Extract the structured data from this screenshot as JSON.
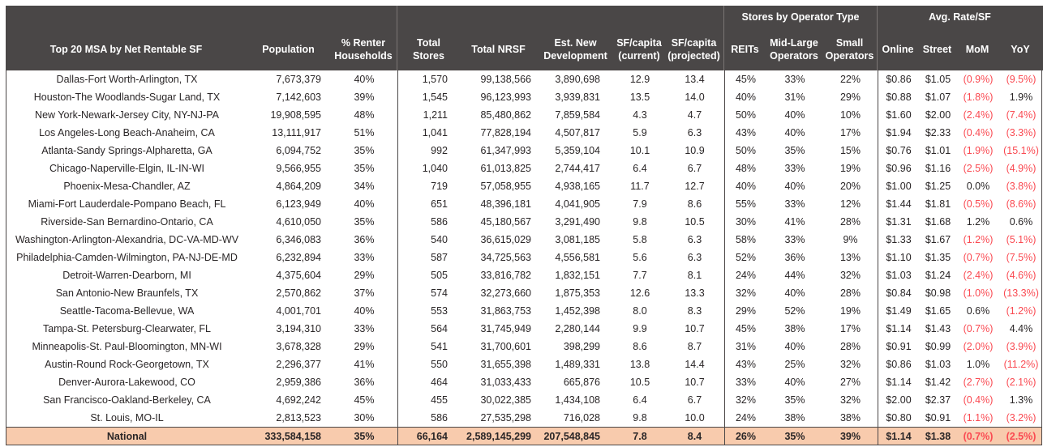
{
  "table": {
    "group_headers": {
      "operator_type": "Stores by Operator Type",
      "avg_rate": "Avg. Rate/SF"
    },
    "headers": [
      "Top 20 MSA by Net Rentable SF",
      "Population",
      "% Renter Households",
      "Total Stores",
      "Total NRSF",
      "Est. New Development",
      "SF/capita (current)",
      "SF/capita (projected)",
      "REITs",
      "Mid-Large Operators",
      "Small Operators",
      "Online",
      "Street",
      "MoM",
      "YoY"
    ],
    "col_keys": [
      "msa",
      "population",
      "renter-households",
      "total-stores",
      "total-nrsf",
      "est-new-development",
      "sf-capita-current",
      "sf-capita-projected",
      "reits",
      "mid-large-operators",
      "small-operators",
      "online-rate",
      "street-rate",
      "mom",
      "yoy"
    ],
    "rows": [
      [
        "Dallas-Fort Worth-Arlington, TX",
        "7,673,379",
        "40%",
        "1,570",
        "99,138,566",
        "3,890,698",
        "12.9",
        "13.4",
        "45%",
        "33%",
        "22%",
        "$0.86",
        "$1.05",
        "(0.9%)",
        "(9.5%)"
      ],
      [
        "Houston-The Woodlands-Sugar Land, TX",
        "7,142,603",
        "39%",
        "1,545",
        "96,123,993",
        "3,939,831",
        "13.5",
        "14.0",
        "40%",
        "31%",
        "29%",
        "$0.88",
        "$1.07",
        "(1.8%)",
        "1.9%"
      ],
      [
        "New York-Newark-Jersey City, NY-NJ-PA",
        "19,908,595",
        "48%",
        "1,211",
        "85,480,862",
        "7,859,584",
        "4.3",
        "4.7",
        "50%",
        "40%",
        "10%",
        "$1.60",
        "$2.00",
        "(2.4%)",
        "(7.4%)"
      ],
      [
        "Los Angeles-Long Beach-Anaheim, CA",
        "13,111,917",
        "51%",
        "1,041",
        "77,828,194",
        "4,507,817",
        "5.9",
        "6.3",
        "43%",
        "40%",
        "17%",
        "$1.94",
        "$2.33",
        "(0.4%)",
        "(3.3%)"
      ],
      [
        "Atlanta-Sandy Springs-Alpharetta, GA",
        "6,094,752",
        "35%",
        "992",
        "61,347,993",
        "5,359,104",
        "10.1",
        "10.9",
        "50%",
        "35%",
        "15%",
        "$0.76",
        "$1.01",
        "(1.9%)",
        "(15.1%)"
      ],
      [
        "Chicago-Naperville-Elgin, IL-IN-WI",
        "9,566,955",
        "35%",
        "1,040",
        "61,013,825",
        "2,744,417",
        "6.4",
        "6.7",
        "48%",
        "33%",
        "19%",
        "$0.96",
        "$1.16",
        "(2.5%)",
        "(4.9%)"
      ],
      [
        "Phoenix-Mesa-Chandler, AZ",
        "4,864,209",
        "34%",
        "719",
        "57,058,955",
        "4,938,165",
        "11.7",
        "12.7",
        "40%",
        "40%",
        "20%",
        "$1.00",
        "$1.25",
        "0.0%",
        "(3.8%)"
      ],
      [
        "Miami-Fort Lauderdale-Pompano Beach, FL",
        "6,123,949",
        "40%",
        "651",
        "48,396,181",
        "4,041,905",
        "7.9",
        "8.6",
        "55%",
        "33%",
        "12%",
        "$1.44",
        "$1.81",
        "(0.5%)",
        "(8.6%)"
      ],
      [
        "Riverside-San Bernardino-Ontario, CA",
        "4,610,050",
        "35%",
        "586",
        "45,180,567",
        "3,291,490",
        "9.8",
        "10.5",
        "30%",
        "41%",
        "28%",
        "$1.31",
        "$1.68",
        "1.2%",
        "0.6%"
      ],
      [
        "Washington-Arlington-Alexandria, DC-VA-MD-WV",
        "6,346,083",
        "36%",
        "540",
        "36,615,029",
        "3,081,185",
        "5.8",
        "6.3",
        "58%",
        "33%",
        "9%",
        "$1.33",
        "$1.67",
        "(1.2%)",
        "(5.1%)"
      ],
      [
        "Philadelphia-Camden-Wilmington, PA-NJ-DE-MD",
        "6,232,894",
        "33%",
        "587",
        "34,725,563",
        "4,556,581",
        "5.6",
        "6.3",
        "52%",
        "36%",
        "13%",
        "$1.10",
        "$1.35",
        "(0.7%)",
        "(7.5%)"
      ],
      [
        "Detroit-Warren-Dearborn, MI",
        "4,375,604",
        "29%",
        "505",
        "33,816,782",
        "1,832,151",
        "7.7",
        "8.1",
        "24%",
        "44%",
        "32%",
        "$1.03",
        "$1.24",
        "(2.4%)",
        "(4.6%)"
      ],
      [
        "San Antonio-New Braunfels, TX",
        "2,570,862",
        "37%",
        "574",
        "32,273,660",
        "1,875,353",
        "12.6",
        "13.3",
        "32%",
        "40%",
        "28%",
        "$0.84",
        "$0.98",
        "(1.0%)",
        "(13.3%)"
      ],
      [
        "Seattle-Tacoma-Bellevue, WA",
        "4,001,701",
        "40%",
        "553",
        "31,863,753",
        "1,452,398",
        "8.0",
        "8.3",
        "29%",
        "52%",
        "19%",
        "$1.49",
        "$1.65",
        "0.6%",
        "(1.2%)"
      ],
      [
        "Tampa-St. Petersburg-Clearwater, FL",
        "3,194,310",
        "33%",
        "564",
        "31,745,949",
        "2,280,144",
        "9.9",
        "10.7",
        "45%",
        "38%",
        "17%",
        "$1.14",
        "$1.43",
        "(0.7%)",
        "4.4%"
      ],
      [
        "Minneapolis-St. Paul-Bloomington, MN-WI",
        "3,678,328",
        "29%",
        "541",
        "31,700,601",
        "398,299",
        "8.6",
        "8.7",
        "31%",
        "40%",
        "28%",
        "$0.91",
        "$0.99",
        "(2.0%)",
        "(3.9%)"
      ],
      [
        "Austin-Round Rock-Georgetown, TX",
        "2,296,377",
        "41%",
        "550",
        "31,655,398",
        "1,489,331",
        "13.8",
        "14.4",
        "43%",
        "25%",
        "32%",
        "$0.86",
        "$1.03",
        "1.0%",
        "(11.2%)"
      ],
      [
        "Denver-Aurora-Lakewood, CO",
        "2,959,386",
        "36%",
        "464",
        "31,033,433",
        "665,876",
        "10.5",
        "10.7",
        "33%",
        "40%",
        "27%",
        "$1.14",
        "$1.42",
        "(2.7%)",
        "(2.1%)"
      ],
      [
        "San Francisco-Oakland-Berkeley, CA",
        "4,692,242",
        "45%",
        "455",
        "30,022,385",
        "1,434,108",
        "6.4",
        "6.7",
        "32%",
        "35%",
        "32%",
        "$2.00",
        "$2.37",
        "(0.4%)",
        "1.3%"
      ],
      [
        "St. Louis, MO-IL",
        "2,813,523",
        "30%",
        "586",
        "27,535,298",
        "716,028",
        "9.8",
        "10.0",
        "24%",
        "38%",
        "38%",
        "$0.80",
        "$0.91",
        "(1.1%)",
        "(3.2%)"
      ]
    ],
    "national": [
      "National",
      "333,584,158",
      "35%",
      "66,164",
      "2,589,145,299",
      "207,548,845",
      "7.8",
      "8.4",
      "26%",
      "35%",
      "39%",
      "$1.14",
      "$1.38",
      "(0.7%)",
      "(2.5%)"
    ]
  },
  "colors": {
    "header_bg": "#4a4747",
    "negative_value": "#fa4a52",
    "national_row_bg": "#f8cbad",
    "grid_line": "#4b4747"
  }
}
